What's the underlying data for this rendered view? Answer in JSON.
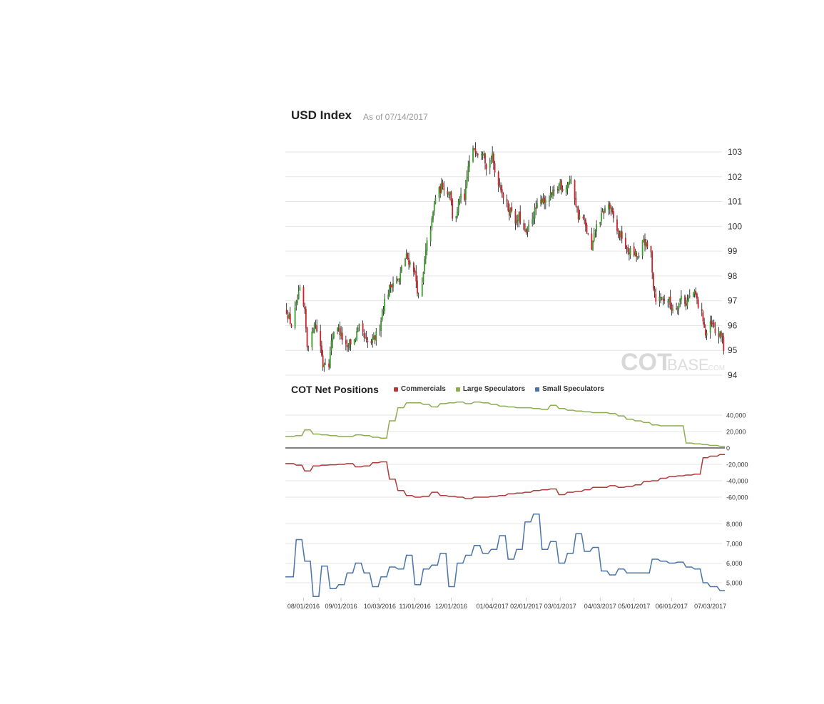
{
  "header": {
    "title": "USD Index",
    "as_of": "As of 07/14/2017",
    "cot_title": "COT Net Positions"
  },
  "watermark": {
    "cot": "COT",
    "base": "BASE",
    "com": ".COM"
  },
  "colors": {
    "commercials": "#b03a3a",
    "large_speculators": "#8cae4c",
    "small_speculators": "#4a74a8",
    "up_candle": "#3a9a2a",
    "down_candle": "#d0202a",
    "grid": "#e6e6e6"
  },
  "chart_data": [
    {
      "type": "candlestick",
      "title": "USD Index",
      "subtitle": "As of 07/14/2017",
      "ylim": [
        94,
        103.6
      ],
      "yticks": [
        94,
        95,
        96,
        97,
        98,
        99,
        100,
        101,
        102,
        103
      ],
      "date_range": [
        "2016-07-18",
        "2017-07-14"
      ],
      "close_path": [
        [
          "2016-07-18",
          96.6
        ],
        [
          "2016-07-22",
          96.0
        ],
        [
          "2016-07-27",
          97.0
        ],
        [
          "2016-07-29",
          97.4
        ],
        [
          "2016-08-02",
          96.5
        ],
        [
          "2016-08-04",
          95.2
        ],
        [
          "2016-08-08",
          95.6
        ],
        [
          "2016-08-10",
          96.2
        ],
        [
          "2016-08-12",
          95.8
        ],
        [
          "2016-08-15",
          95.2
        ],
        [
          "2016-08-17",
          94.4
        ],
        [
          "2016-08-19",
          94.6
        ],
        [
          "2016-08-22",
          94.5
        ],
        [
          "2016-08-24",
          95.3
        ],
        [
          "2016-08-26",
          95.8
        ],
        [
          "2016-08-29",
          96.0
        ],
        [
          "2016-09-01",
          95.6
        ],
        [
          "2016-09-06",
          95.0
        ],
        [
          "2016-09-08",
          95.3
        ],
        [
          "2016-09-12",
          95.4
        ],
        [
          "2016-09-14",
          95.7
        ],
        [
          "2016-09-16",
          95.9
        ],
        [
          "2016-09-19",
          95.6
        ],
        [
          "2016-09-22",
          95.3
        ],
        [
          "2016-09-26",
          95.3
        ],
        [
          "2016-09-29",
          95.5
        ],
        [
          "2016-10-03",
          96.0
        ],
        [
          "2016-10-05",
          96.6
        ],
        [
          "2016-10-07",
          97.0
        ],
        [
          "2016-10-11",
          97.5
        ],
        [
          "2016-10-13",
          97.7
        ],
        [
          "2016-10-17",
          97.9
        ],
        [
          "2016-10-19",
          97.7
        ],
        [
          "2016-10-21",
          98.4
        ],
        [
          "2016-10-25",
          98.8
        ],
        [
          "2016-10-27",
          98.6
        ],
        [
          "2016-10-31",
          98.3
        ],
        [
          "2016-11-02",
          97.8
        ],
        [
          "2016-11-04",
          97.1
        ],
        [
          "2016-11-07",
          97.6
        ],
        [
          "2016-11-09",
          98.6
        ],
        [
          "2016-11-11",
          99.3
        ],
        [
          "2016-11-15",
          100.2
        ],
        [
          "2016-11-18",
          101.2
        ],
        [
          "2016-11-22",
          101.5
        ],
        [
          "2016-11-24",
          101.7
        ],
        [
          "2016-11-28",
          101.3
        ],
        [
          "2016-11-30",
          101.5
        ],
        [
          "2016-12-02",
          100.4
        ],
        [
          "2016-12-06",
          100.5
        ],
        [
          "2016-12-08",
          101.2
        ],
        [
          "2016-12-12",
          101.0
        ],
        [
          "2016-12-15",
          102.4
        ],
        [
          "2016-12-20",
          103.2
        ],
        [
          "2016-12-23",
          103.0
        ],
        [
          "2016-12-28",
          103.1
        ],
        [
          "2016-12-30",
          102.3
        ],
        [
          "2017-01-04",
          102.8
        ],
        [
          "2017-01-06",
          102.2
        ],
        [
          "2017-01-09",
          101.8
        ],
        [
          "2017-01-11",
          101.6
        ],
        [
          "2017-01-13",
          101.2
        ],
        [
          "2017-01-18",
          100.6
        ],
        [
          "2017-01-20",
          100.7
        ],
        [
          "2017-01-24",
          100.1
        ],
        [
          "2017-01-26",
          100.4
        ],
        [
          "2017-01-30",
          99.8
        ],
        [
          "2017-02-01",
          99.7
        ],
        [
          "2017-02-03",
          100.0
        ],
        [
          "2017-02-07",
          100.5
        ],
        [
          "2017-02-09",
          100.7
        ],
        [
          "2017-02-13",
          101.0
        ],
        [
          "2017-02-15",
          101.2
        ],
        [
          "2017-02-17",
          100.9
        ],
        [
          "2017-02-21",
          101.2
        ],
        [
          "2017-02-23",
          101.3
        ],
        [
          "2017-02-27",
          101.5
        ],
        [
          "2017-03-01",
          101.8
        ],
        [
          "2017-03-03",
          101.5
        ],
        [
          "2017-03-07",
          101.7
        ],
        [
          "2017-03-09",
          101.9
        ],
        [
          "2017-03-13",
          101.2
        ],
        [
          "2017-03-16",
          100.4
        ],
        [
          "2017-03-20",
          100.3
        ],
        [
          "2017-03-23",
          99.8
        ],
        [
          "2017-03-27",
          99.0
        ],
        [
          "2017-03-30",
          99.9
        ],
        [
          "2017-04-03",
          100.3
        ],
        [
          "2017-04-06",
          100.6
        ],
        [
          "2017-04-10",
          100.9
        ],
        [
          "2017-04-12",
          100.6
        ],
        [
          "2017-04-18",
          99.7
        ],
        [
          "2017-04-21",
          99.6
        ],
        [
          "2017-04-25",
          99.0
        ],
        [
          "2017-04-28",
          99.0
        ],
        [
          "2017-05-03",
          98.8
        ],
        [
          "2017-05-05",
          98.7
        ],
        [
          "2017-05-09",
          99.5
        ],
        [
          "2017-05-11",
          99.2
        ],
        [
          "2017-05-15",
          98.9
        ],
        [
          "2017-05-17",
          97.6
        ],
        [
          "2017-05-19",
          97.1
        ],
        [
          "2017-05-23",
          97.1
        ],
        [
          "2017-05-25",
          97.1
        ],
        [
          "2017-05-30",
          97.0
        ],
        [
          "2017-06-01",
          96.7
        ],
        [
          "2017-06-05",
          96.8
        ],
        [
          "2017-06-07",
          96.9
        ],
        [
          "2017-06-09",
          97.2
        ],
        [
          "2017-06-13",
          96.9
        ],
        [
          "2017-06-15",
          97.1
        ],
        [
          "2017-06-19",
          97.3
        ],
        [
          "2017-06-21",
          97.2
        ],
        [
          "2017-06-23",
          96.8
        ],
        [
          "2017-06-27",
          96.3
        ],
        [
          "2017-06-29",
          95.6
        ],
        [
          "2017-07-03",
          96.0
        ],
        [
          "2017-07-05",
          96.0
        ],
        [
          "2017-07-07",
          95.7
        ],
        [
          "2017-07-11",
          95.6
        ],
        [
          "2017-07-13",
          95.6
        ],
        [
          "2017-07-14",
          95.0
        ]
      ]
    },
    {
      "type": "line",
      "title": "COT Net Positions",
      "ylim": [
        -62000,
        62000
      ],
      "yticks": [
        -60000,
        -40000,
        -20000,
        0,
        20000,
        40000
      ],
      "ytick_labels": [
        "-60,000",
        "-40,000",
        "-20,000",
        "0",
        "20,000",
        "40,000"
      ],
      "legend_position": "top",
      "x": [
        "2016-07-19",
        "2016-07-26",
        "2016-08-02",
        "2016-08-09",
        "2016-08-16",
        "2016-08-23",
        "2016-08-30",
        "2016-09-06",
        "2016-09-13",
        "2016-09-20",
        "2016-09-27",
        "2016-10-04",
        "2016-10-11",
        "2016-10-18",
        "2016-10-25",
        "2016-11-01",
        "2016-11-08",
        "2016-11-15",
        "2016-11-22",
        "2016-11-29",
        "2016-12-06",
        "2016-12-13",
        "2016-12-20",
        "2016-12-27",
        "2017-01-03",
        "2017-01-10",
        "2017-01-17",
        "2017-01-24",
        "2017-01-31",
        "2017-02-07",
        "2017-02-14",
        "2017-02-21",
        "2017-02-28",
        "2017-03-07",
        "2017-03-14",
        "2017-03-21",
        "2017-03-28",
        "2017-04-04",
        "2017-04-11",
        "2017-04-18",
        "2017-04-25",
        "2017-05-02",
        "2017-05-09",
        "2017-05-16",
        "2017-05-23",
        "2017-05-30",
        "2017-06-06",
        "2017-06-13",
        "2017-06-20",
        "2017-06-27",
        "2017-07-03",
        "2017-07-11"
      ],
      "series": [
        {
          "name": "Commercials",
          "values": [
            -19000,
            -21000,
            -28000,
            -22000,
            -21000,
            -20500,
            -20000,
            -19000,
            -23000,
            -22000,
            -18000,
            -17000,
            -38000,
            -52000,
            -58000,
            -60000,
            -59000,
            -54000,
            -58000,
            -59000,
            -60000,
            -62000,
            -60000,
            -60000,
            -59000,
            -58000,
            -56000,
            -55000,
            -54000,
            -52000,
            -51000,
            -50000,
            -57000,
            -54000,
            -53000,
            -51000,
            -48000,
            -48000,
            -46000,
            -48000,
            -47000,
            -45000,
            -41000,
            -40000,
            -37000,
            -35000,
            -34000,
            -33000,
            -32000,
            -12000,
            -10000,
            -8000
          ]
        },
        {
          "name": "Large Speculators",
          "values": [
            14000,
            15000,
            22000,
            17000,
            16000,
            15000,
            14000,
            14000,
            16000,
            15000,
            13000,
            12000,
            33000,
            49000,
            55000,
            55000,
            53000,
            50000,
            54000,
            55000,
            56000,
            54000,
            56000,
            55000,
            53000,
            51000,
            50000,
            49000,
            49000,
            48000,
            47000,
            52000,
            48000,
            46000,
            45000,
            44000,
            43000,
            43000,
            42000,
            39000,
            35000,
            33000,
            31000,
            28000,
            27000,
            27000,
            27000,
            6000,
            5000,
            4000,
            3000,
            2000
          ]
        },
        {
          "name": "Small Speculators",
          "values": [
            5300,
            7200,
            6100,
            4300,
            5850,
            4700,
            4900,
            5500,
            6000,
            5500,
            4800,
            5300,
            5800,
            5700,
            6400,
            4900,
            5700,
            5900,
            6500,
            4800,
            6000,
            6400,
            6900,
            6500,
            6700,
            7400,
            6200,
            6700,
            8100,
            8500,
            6700,
            7100,
            6000,
            6500,
            7500,
            6600,
            6800,
            5600,
            5400,
            5700,
            5500,
            5500,
            5500,
            6200,
            6100,
            6000,
            6050,
            5800,
            5700,
            5000,
            4800,
            4600
          ]
        }
      ]
    }
  ],
  "x_tick_labels": [
    "08/01/2016",
    "09/01/2016",
    "10/03/2016",
    "11/01/2016",
    "12/01/2016",
    "01/04/2017",
    "02/01/2017",
    "03/01/2017",
    "04/03/2017",
    "05/01/2017",
    "06/01/2017",
    "07/03/2017"
  ],
  "small_spec_axis": {
    "yticks": [
      5000,
      6000,
      7000,
      8000
    ],
    "ytick_labels": [
      "5,000",
      "6,000",
      "7,000",
      "8,000"
    ]
  }
}
